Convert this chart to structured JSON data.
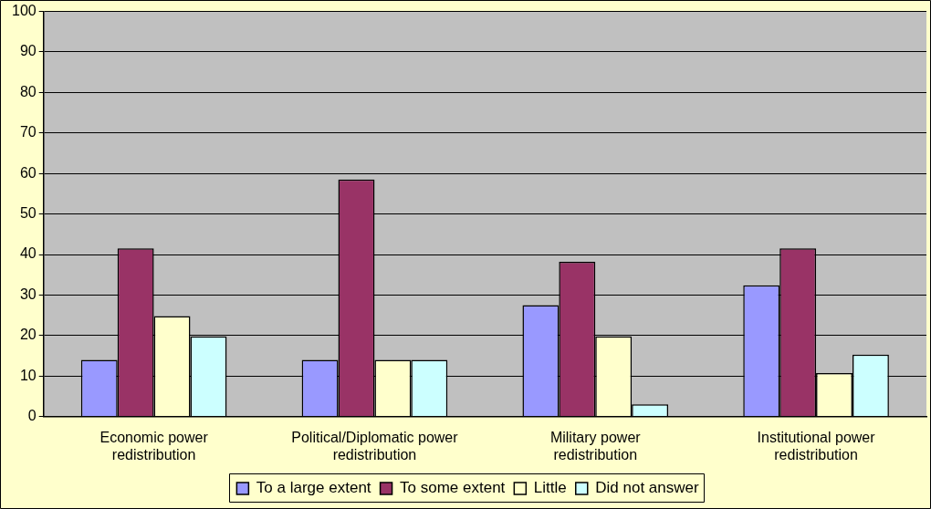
{
  "chart_data": {
    "type": "bar",
    "categories": [
      "Economic power redistribution",
      "Political/Diplomatic power redistribution",
      "Military power redistribution",
      "Institutional power redistribution"
    ],
    "series": [
      {
        "name": "To a large extent",
        "color": "#9999ff",
        "values": [
          14,
          14,
          27.5,
          32.4
        ]
      },
      {
        "name": "To some extent",
        "color": "#993366",
        "values": [
          41.5,
          58.5,
          38.2,
          41.5
        ]
      },
      {
        "name": "Little",
        "color": "#ffffcc",
        "values": [
          24.8,
          14,
          19.8,
          10.7
        ]
      },
      {
        "name": "Did not answer",
        "color": "#ccffff",
        "values": [
          19.8,
          14,
          3,
          15.3
        ]
      }
    ],
    "ylim": [
      0,
      100
    ],
    "yticks": [
      0,
      10,
      20,
      30,
      40,
      50,
      60,
      70,
      80,
      90,
      100
    ],
    "grid": "y",
    "legend": "bottom"
  }
}
